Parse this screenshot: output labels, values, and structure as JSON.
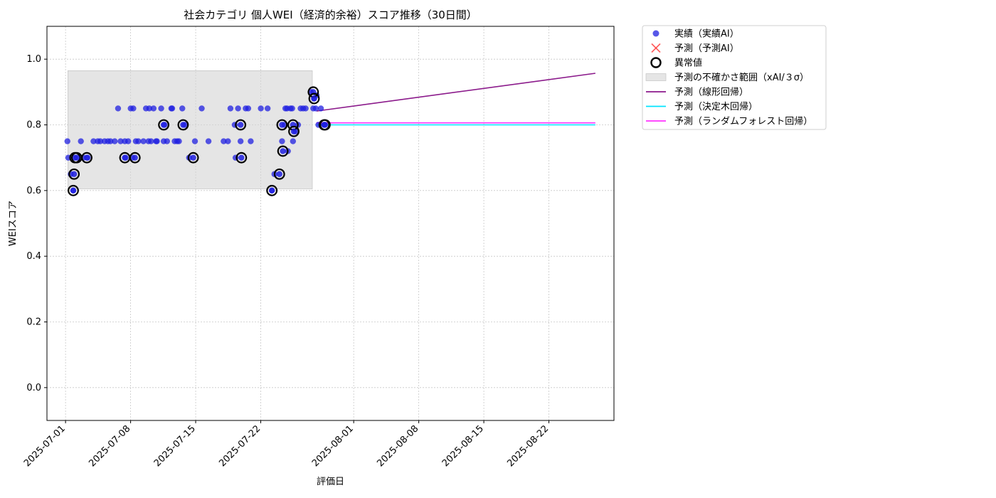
{
  "chart_data": {
    "type": "scatter",
    "title": "社会カテゴリ 個人WEI（経済的余裕）スコア推移（30日間）",
    "xlabel": "評価日",
    "ylabel": "WEIスコア",
    "ylim": [
      -0.1,
      1.1
    ],
    "xlim": [
      "2025-06-29",
      "2025-08-29"
    ],
    "x_ticks": [
      "2025-07-01",
      "2025-07-08",
      "2025-07-15",
      "2025-07-22",
      "2025-08-01",
      "2025-08-08",
      "2025-08-15",
      "2025-08-22"
    ],
    "y_ticks": [
      "0.0",
      "0.2",
      "0.4",
      "0.6",
      "0.8",
      "1.0"
    ],
    "grid": true,
    "legend_position": "outside-right-top",
    "colors": {
      "actual": "#1f1fe0",
      "predicted_ai": "#ff3333",
      "anomaly": "#000000",
      "uncertainty": "#d3d3d3",
      "linear": "#8b1a8b",
      "tree": "#00e5ff",
      "forest": "#ff33ff"
    },
    "legend": [
      {
        "label": "実績（実績AI）",
        "kind": "dot",
        "color": "#1f1fe0"
      },
      {
        "label": "予測（予測AI）",
        "kind": "x",
        "color": "#ff3333"
      },
      {
        "label": "異常値",
        "kind": "ring",
        "color": "#000000"
      },
      {
        "label": "予測の不確かさ範囲（xAI/３σ）",
        "kind": "band",
        "color": "#d3d3d3"
      },
      {
        "label": "予測（線形回帰）",
        "kind": "line",
        "color": "#8b1a8b"
      },
      {
        "label": "予測（決定木回帰）",
        "kind": "line",
        "color": "#00e5ff"
      },
      {
        "label": "予測（ランダムフォレスト回帰）",
        "kind": "line",
        "color": "#ff33ff"
      }
    ],
    "uncertainty_band": {
      "x_start": "2025-07-01",
      "x_end": "2025-07-27",
      "y_low": 0.605,
      "y_high": 0.965
    },
    "series": [
      {
        "name": "実績（実績AI）",
        "points": [
          [
            "2025-07-01",
            0.75
          ],
          [
            "2025-07-01",
            0.6
          ],
          [
            "2025-07-01",
            0.65
          ],
          [
            "2025-07-01",
            0.7
          ],
          [
            "2025-07-02",
            0.7
          ],
          [
            "2025-07-02",
            0.75
          ],
          [
            "2025-07-03",
            0.7
          ],
          [
            "2025-07-03",
            0.75
          ],
          [
            "2025-07-04",
            0.75
          ],
          [
            "2025-07-04",
            0.75
          ],
          [
            "2025-07-05",
            0.75
          ],
          [
            "2025-07-05",
            0.75
          ],
          [
            "2025-07-05",
            0.75
          ],
          [
            "2025-07-06",
            0.75
          ],
          [
            "2025-07-06",
            0.75
          ],
          [
            "2025-07-06",
            0.85
          ],
          [
            "2025-07-07",
            0.75
          ],
          [
            "2025-07-07",
            0.85
          ],
          [
            "2025-07-07",
            0.75
          ],
          [
            "2025-07-07",
            0.7
          ],
          [
            "2025-07-08",
            0.7
          ],
          [
            "2025-07-08",
            0.75
          ],
          [
            "2025-07-08",
            0.75
          ],
          [
            "2025-07-08",
            0.85
          ],
          [
            "2025-07-09",
            0.75
          ],
          [
            "2025-07-09",
            0.85
          ],
          [
            "2025-07-09",
            0.75
          ],
          [
            "2025-07-09",
            0.85
          ],
          [
            "2025-07-10",
            0.75
          ],
          [
            "2025-07-10",
            0.85
          ],
          [
            "2025-07-10",
            0.75
          ],
          [
            "2025-07-10",
            0.75
          ],
          [
            "2025-07-11",
            0.75
          ],
          [
            "2025-07-11",
            0.85
          ],
          [
            "2025-07-11",
            0.75
          ],
          [
            "2025-07-11",
            0.8
          ],
          [
            "2025-07-12",
            0.85
          ],
          [
            "2025-07-12",
            0.75
          ],
          [
            "2025-07-12",
            0.75
          ],
          [
            "2025-07-12",
            0.85
          ],
          [
            "2025-07-13",
            0.75
          ],
          [
            "2025-07-13",
            0.8
          ],
          [
            "2025-07-13",
            0.85
          ],
          [
            "2025-07-14",
            0.7
          ],
          [
            "2025-07-14",
            0.75
          ],
          [
            "2025-07-15",
            0.85
          ],
          [
            "2025-07-16",
            0.75
          ],
          [
            "2025-07-17",
            0.75
          ],
          [
            "2025-07-18",
            0.85
          ],
          [
            "2025-07-18",
            0.75
          ],
          [
            "2025-07-19",
            0.8
          ],
          [
            "2025-07-19",
            0.75
          ],
          [
            "2025-07-19",
            0.85
          ],
          [
            "2025-07-19",
            0.7
          ],
          [
            "2025-07-20",
            0.75
          ],
          [
            "2025-07-20",
            0.85
          ],
          [
            "2025-07-20",
            0.85
          ],
          [
            "2025-07-21",
            0.85
          ],
          [
            "2025-07-22",
            0.85
          ],
          [
            "2025-07-23",
            0.65
          ],
          [
            "2025-07-23",
            0.6
          ],
          [
            "2025-07-24",
            0.85
          ],
          [
            "2025-07-24",
            0.8
          ],
          [
            "2025-07-24",
            0.75
          ],
          [
            "2025-07-24",
            0.72
          ],
          [
            "2025-07-24",
            0.85
          ],
          [
            "2025-07-25",
            0.85
          ],
          [
            "2025-07-25",
            0.8
          ],
          [
            "2025-07-25",
            0.78
          ],
          [
            "2025-07-25",
            0.75
          ],
          [
            "2025-07-25",
            0.85
          ],
          [
            "2025-07-26",
            0.85
          ],
          [
            "2025-07-26",
            0.85
          ],
          [
            "2025-07-26",
            0.85
          ],
          [
            "2025-07-27",
            0.85
          ],
          [
            "2025-07-27",
            0.85
          ],
          [
            "2025-07-27",
            0.9
          ],
          [
            "2025-07-27",
            0.89
          ],
          [
            "2025-07-27",
            0.88
          ],
          [
            "2025-07-28",
            0.85
          ],
          [
            "2025-07-28",
            0.8
          ],
          [
            "2025-07-28",
            0.8
          ]
        ]
      },
      {
        "name": "異常値",
        "points": [
          [
            "2025-07-01",
            0.6
          ],
          [
            "2025-07-01",
            0.65
          ],
          [
            "2025-07-01",
            0.7
          ],
          [
            "2025-07-02",
            0.7
          ],
          [
            "2025-07-03",
            0.7
          ],
          [
            "2025-07-07",
            0.7
          ],
          [
            "2025-07-08",
            0.7
          ],
          [
            "2025-07-11",
            0.8
          ],
          [
            "2025-07-13",
            0.8
          ],
          [
            "2025-07-14",
            0.7
          ],
          [
            "2025-07-19",
            0.8
          ],
          [
            "2025-07-19",
            0.7
          ],
          [
            "2025-07-23",
            0.65
          ],
          [
            "2025-07-23",
            0.6
          ],
          [
            "2025-07-24",
            0.8
          ],
          [
            "2025-07-24",
            0.72
          ],
          [
            "2025-07-25",
            0.8
          ],
          [
            "2025-07-25",
            0.78
          ],
          [
            "2025-07-27",
            0.9
          ],
          [
            "2025-07-27",
            0.88
          ],
          [
            "2025-07-28",
            0.8
          ],
          [
            "2025-07-28",
            0.8
          ]
        ]
      },
      {
        "name": "予測（線形回帰）",
        "line": [
          [
            "2025-07-28",
            0.842
          ],
          [
            "2025-08-27",
            0.957
          ]
        ]
      },
      {
        "name": "予測（決定木回帰）",
        "line": [
          [
            "2025-07-28",
            0.8
          ],
          [
            "2025-08-27",
            0.8
          ]
        ]
      },
      {
        "name": "予測（ランダムフォレスト回帰）",
        "line": [
          [
            "2025-07-28",
            0.806
          ],
          [
            "2025-08-27",
            0.806
          ]
        ]
      }
    ]
  }
}
